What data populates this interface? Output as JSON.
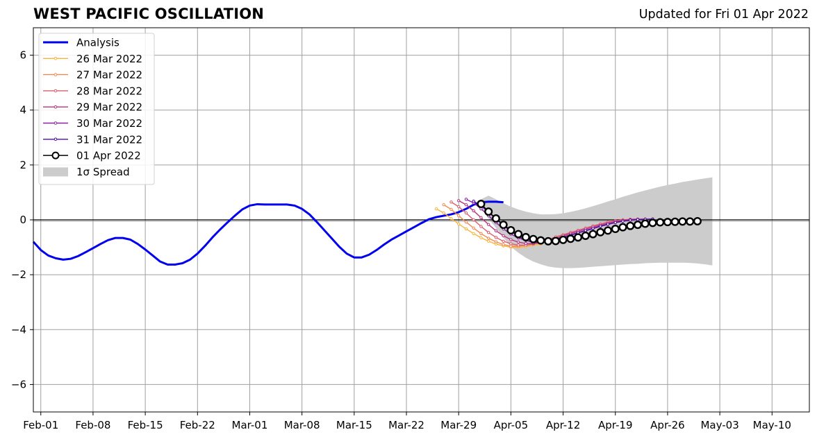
{
  "title": "WEST PACIFIC OSCILLATION",
  "subtitle": "Updated for Fri 01 Apr 2022",
  "chart_data": {
    "type": "line",
    "title": "WEST PACIFIC OSCILLATION",
    "subtitle": "Updated for Fri 01 Apr 2022",
    "xlabel": "",
    "ylabel": "",
    "xlim": [
      "2022-01-31",
      "2022-05-15"
    ],
    "ylim": [
      -7,
      7
    ],
    "grid": true,
    "legend_position": "top-left",
    "x_ticks": [
      "2022-02-01",
      "2022-02-08",
      "2022-02-15",
      "2022-02-22",
      "2022-03-01",
      "2022-03-08",
      "2022-03-15",
      "2022-03-22",
      "2022-03-29",
      "2022-04-05",
      "2022-04-12",
      "2022-04-19",
      "2022-04-26",
      "2022-05-03",
      "2022-05-10"
    ],
    "x_tick_labels": [
      "Feb-01",
      "Feb-08",
      "Feb-15",
      "Feb-22",
      "Mar-01",
      "Mar-08",
      "Mar-15",
      "Mar-22",
      "Mar-29",
      "Apr-05",
      "Apr-12",
      "Apr-19",
      "Apr-26",
      "May-03",
      "May-10"
    ],
    "y_ticks": [
      -6,
      -4,
      -2,
      0,
      2,
      4,
      6
    ],
    "y_tick_labels": [
      "−6",
      "−4",
      "−2",
      "0",
      "2",
      "4",
      "6"
    ],
    "analysis": {
      "name": "Analysis",
      "color": "#0000ee",
      "start": "2022-01-31",
      "values": [
        -0.8,
        -1.1,
        -1.3,
        -1.4,
        -1.45,
        -1.42,
        -1.32,
        -1.18,
        -1.03,
        -0.88,
        -0.74,
        -0.66,
        -0.66,
        -0.72,
        -0.88,
        -1.08,
        -1.3,
        -1.52,
        -1.63,
        -1.63,
        -1.58,
        -1.45,
        -1.23,
        -0.95,
        -0.64,
        -0.36,
        -0.1,
        0.15,
        0.38,
        0.52,
        0.57,
        0.56,
        0.56,
        0.56,
        0.56,
        0.52,
        0.4,
        0.2,
        -0.08,
        -0.38,
        -0.68,
        -0.98,
        -1.23,
        -1.37,
        -1.37,
        -1.27,
        -1.1,
        -0.9,
        -0.72,
        -0.57,
        -0.42,
        -0.27,
        -0.12,
        0.02,
        0.1,
        0.15,
        0.2,
        0.28,
        0.4,
        0.55,
        0.64,
        0.66,
        0.66,
        0.64
      ]
    },
    "forecasts": [
      {
        "name": "26 Mar 2022",
        "color": "#f9b338",
        "start": "2022-03-26",
        "values": [
          0.4,
          0.25,
          0.05,
          -0.15,
          -0.33,
          -0.5,
          -0.65,
          -0.78,
          -0.88,
          -0.95,
          -1.0,
          -1.0,
          -0.97,
          -0.92,
          -0.88
        ]
      },
      {
        "name": "27 Mar 2022",
        "color": "#f1894e",
        "start": "2022-03-27",
        "values": [
          0.55,
          0.38,
          0.15,
          -0.08,
          -0.3,
          -0.5,
          -0.67,
          -0.8,
          -0.9,
          -0.96,
          -0.96,
          -0.92,
          -0.88,
          -0.85
        ]
      },
      {
        "name": "28 Mar 2022",
        "color": "#dd5a6c",
        "start": "2022-03-28",
        "values": [
          0.65,
          0.48,
          0.25,
          0.0,
          -0.24,
          -0.46,
          -0.64,
          -0.78,
          -0.87,
          -0.92,
          -0.92,
          -0.88,
          -0.8,
          -0.72,
          -0.62,
          -0.54,
          -0.46,
          -0.38,
          -0.3,
          -0.22,
          -0.15,
          -0.08,
          -0.03,
          0.0,
          0.02,
          0.03
        ]
      },
      {
        "name": "29 Mar 2022",
        "color": "#b8317f",
        "start": "2022-03-29",
        "values": [
          0.7,
          0.55,
          0.33,
          0.08,
          -0.17,
          -0.4,
          -0.58,
          -0.72,
          -0.81,
          -0.86,
          -0.86,
          -0.82,
          -0.75,
          -0.67,
          -0.58,
          -0.5,
          -0.42,
          -0.34,
          -0.26,
          -0.19,
          -0.12,
          -0.06,
          -0.02,
          0.01,
          0.02,
          0.03
        ]
      },
      {
        "name": "30 Mar 2022",
        "color": "#8c1fa6",
        "start": "2022-03-30",
        "values": [
          0.75,
          0.62,
          0.4,
          0.15,
          -0.1,
          -0.33,
          -0.52,
          -0.66,
          -0.75,
          -0.8,
          -0.8,
          -0.77,
          -0.71,
          -0.64,
          -0.56,
          -0.48,
          -0.4,
          -0.32,
          -0.24,
          -0.17,
          -0.1,
          -0.05,
          -0.01,
          0.01,
          0.02,
          0.03
        ]
      },
      {
        "name": "31 Mar 2022",
        "color": "#4c0c9a",
        "start": "2022-03-31",
        "values": [
          0.68,
          0.52,
          0.28,
          0.04,
          -0.2,
          -0.42,
          -0.6,
          -0.74,
          -0.82,
          -0.82,
          -0.78,
          -0.71,
          -0.63,
          -0.55,
          -0.47,
          -0.39,
          -0.31,
          -0.23,
          -0.16,
          -0.1,
          -0.05,
          -0.01,
          0.01,
          0.02,
          0.03
        ]
      },
      {
        "name": "01 Apr 2022",
        "color": "#000000",
        "start": "2022-04-01",
        "values": [
          0.58,
          0.3,
          0.05,
          -0.18,
          -0.38,
          -0.52,
          -0.63,
          -0.7,
          -0.75,
          -0.78,
          -0.77,
          -0.73,
          -0.69,
          -0.64,
          -0.58,
          -0.52,
          -0.45,
          -0.39,
          -0.33,
          -0.27,
          -0.22,
          -0.18,
          -0.14,
          -0.11,
          -0.09,
          -0.08,
          -0.07,
          -0.06,
          -0.06,
          -0.05
        ]
      }
    ],
    "spread": {
      "name": "1σ Spread",
      "color": "#cccccc",
      "start": "2022-04-01",
      "upper": [
        0.75,
        0.88,
        0.75,
        0.6,
        0.48,
        0.38,
        0.3,
        0.24,
        0.2,
        0.2,
        0.21,
        0.24,
        0.29,
        0.35,
        0.42,
        0.5,
        0.58,
        0.67,
        0.75,
        0.84,
        0.92,
        1.0,
        1.07,
        1.14,
        1.21,
        1.27,
        1.32,
        1.38,
        1.42,
        1.47,
        1.51,
        1.55
      ],
      "lower": [
        0.45,
        0.05,
        -0.3,
        -0.65,
        -0.98,
        -1.2,
        -1.38,
        -1.52,
        -1.62,
        -1.7,
        -1.74,
        -1.76,
        -1.76,
        -1.75,
        -1.73,
        -1.71,
        -1.69,
        -1.67,
        -1.65,
        -1.63,
        -1.61,
        -1.6,
        -1.58,
        -1.57,
        -1.56,
        -1.56,
        -1.56,
        -1.56,
        -1.57,
        -1.59,
        -1.62,
        -1.66
      ]
    },
    "legend": [
      "Analysis",
      "26 Mar 2022",
      "27 Mar 2022",
      "28 Mar 2022",
      "29 Mar 2022",
      "30 Mar 2022",
      "31 Mar 2022",
      "01 Apr 2022",
      "1σ Spread"
    ]
  }
}
